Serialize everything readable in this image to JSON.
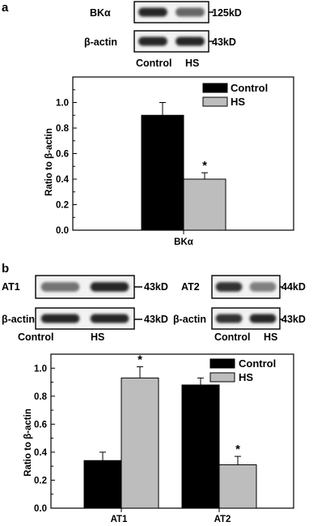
{
  "panels": [
    {
      "letter": "a",
      "blots": [
        {
          "name": "BKα",
          "size": "125kD",
          "bands": [
            [
              0.85,
              0.25
            ],
            [
              0.6,
              0.2
            ]
          ]
        },
        {
          "name": "β-actin",
          "size": "43kD",
          "bands": [
            [
              0.85,
              0.3
            ],
            [
              0.85,
              0.3
            ]
          ]
        }
      ],
      "blot_lanes": [
        "Control",
        "HS"
      ]
    },
    {
      "letter": "b",
      "blot_groups": [
        {
          "blots": [
            {
              "name": "AT1",
              "size": "43kD",
              "bands": [
                [
                  0.55,
                  0.25
                ],
                [
                  0.85,
                  0.3
                ]
              ]
            },
            {
              "name": "β-actin",
              "size": "43kD",
              "bands": [
                [
                  0.85,
                  0.3
                ],
                [
                  0.85,
                  0.3
                ]
              ]
            }
          ],
          "blot_lanes": [
            "Control",
            "HS"
          ]
        },
        {
          "blots": [
            {
              "name": "AT2",
              "size": "44kD",
              "bands": [
                [
                  0.8,
                  0.25
                ],
                [
                  0.5,
                  0.18
                ]
              ]
            },
            {
              "name": "β-actin",
              "size": "43kD",
              "bands": [
                [
                  0.8,
                  0.3
                ],
                [
                  0.85,
                  0.3
                ]
              ]
            }
          ],
          "blot_lanes": [
            "Control",
            "HS"
          ]
        }
      ]
    }
  ],
  "chart_data": [
    {
      "type": "bar",
      "panel": "a",
      "categories": [
        "BKα"
      ],
      "series": [
        {
          "name": "Control",
          "values": [
            0.9
          ],
          "errors": [
            0.1
          ],
          "color": "#000000"
        },
        {
          "name": "HS",
          "values": [
            0.4
          ],
          "errors": [
            0.05
          ],
          "color": "#bdbdbd"
        }
      ],
      "significance": [
        {
          "category": "BKα",
          "series": "HS",
          "label": "*"
        }
      ],
      "ylabel": "Ratio to β-actin",
      "ylim": [
        0,
        1.2
      ],
      "yticks": [
        "0.0",
        "0.2",
        "0.4",
        "0.6",
        "0.8",
        "1.0"
      ],
      "legend": "top-right"
    },
    {
      "type": "bar",
      "panel": "b",
      "categories": [
        "AT1",
        "AT2"
      ],
      "series": [
        {
          "name": "Control",
          "values": [
            0.34,
            0.88
          ],
          "errors": [
            0.06,
            0.05
          ],
          "color": "#000000"
        },
        {
          "name": "HS",
          "values": [
            0.93,
            0.31
          ],
          "errors": [
            0.08,
            0.06
          ],
          "color": "#bdbdbd"
        }
      ],
      "significance": [
        {
          "category": "AT1",
          "series": "HS",
          "label": "*"
        },
        {
          "category": "AT2",
          "series": "HS",
          "label": "*"
        }
      ],
      "ylabel": "Ratio to β-actin",
      "ylim": [
        0,
        1.1
      ],
      "yticks": [
        "0.0",
        "0.2",
        "0.4",
        "0.6",
        "0.8",
        "1.0"
      ],
      "legend": "top-right"
    }
  ]
}
